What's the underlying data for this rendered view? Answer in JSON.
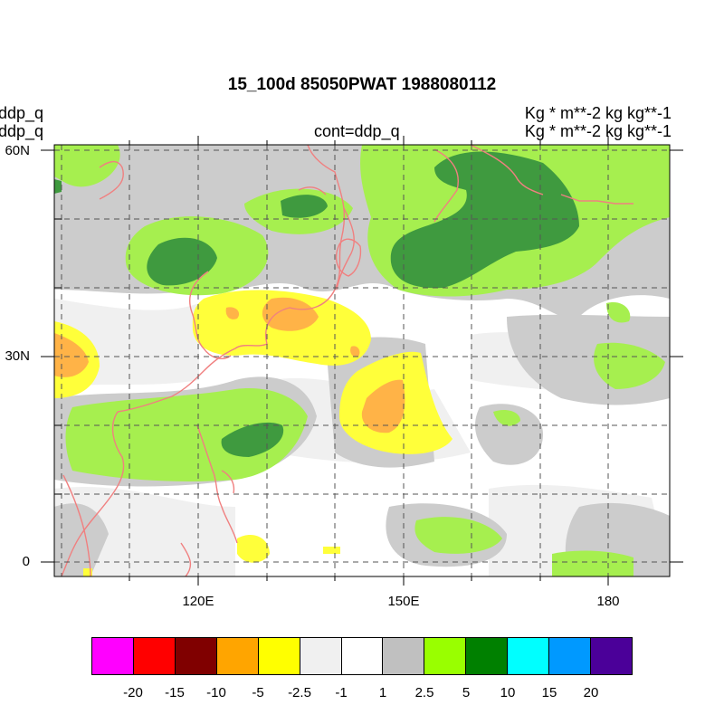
{
  "title": "15_100d 85050PWAT  1988080112",
  "left_labels": [
    "ddp_q",
    "ddp_q"
  ],
  "center_label": "cont=ddp_q",
  "units": [
    "Kg  * m**-2 kg kg**-1",
    "Kg  * m**-2 kg kg**-1"
  ],
  "lat_labels": [
    "60N",
    "30N",
    "0"
  ],
  "lon_labels": [
    "120E",
    "150E",
    "180"
  ],
  "colorbar": {
    "colors": [
      "#ff00ff",
      "#ff0000",
      "#800000",
      "#ffa500",
      "#ffff00",
      "#f0f0f0",
      "#ffffff",
      "#c0c0c0",
      "#99ff00",
      "#008000",
      "#00ffff",
      "#0099ff",
      "#4b0099"
    ],
    "labels": [
      "-20",
      "-15",
      "-10",
      "-5",
      "-2.5",
      "-1",
      "1",
      "2.5",
      "5",
      "10",
      "15",
      "20"
    ]
  },
  "colors": {
    "coast": "#f08080",
    "grid": "#555555",
    "gray": "#cccccc",
    "light_gray": "#f0f0f0",
    "light_green": "#a6ef4f",
    "dark_green": "#3f9a3f",
    "yellow": "#ffff3a",
    "orange": "#ffb347"
  }
}
